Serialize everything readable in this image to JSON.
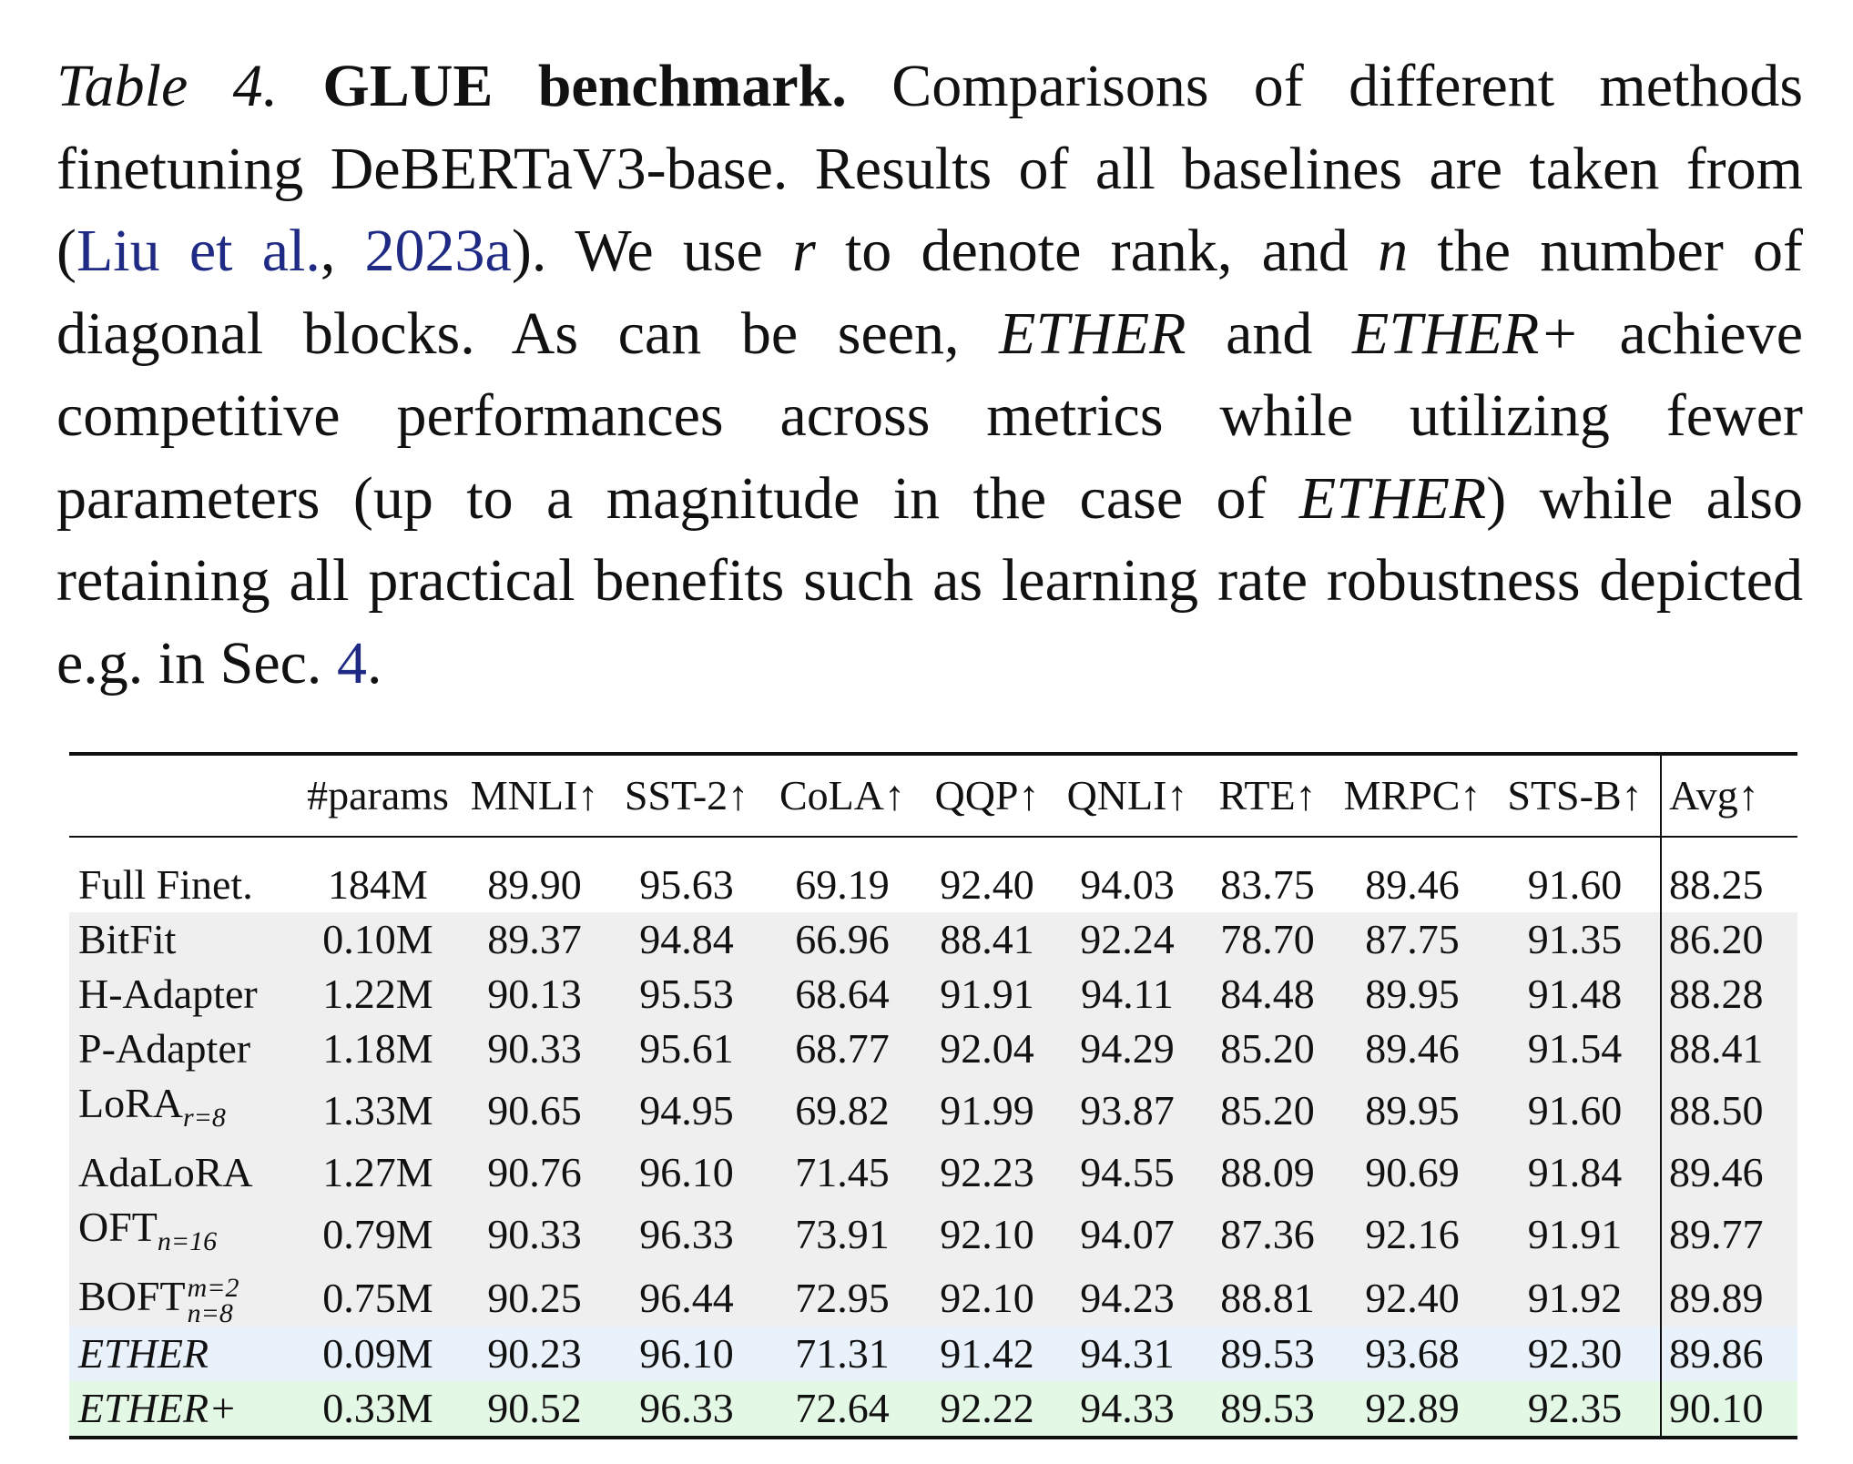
{
  "caption": {
    "table_label": "Table 4.",
    "title": "GLUE benchmark.",
    "text1": "Comparisons of different methods finetuning DeBERTaV3-base. Results of all baselines are taken from (",
    "cite_authors": "Liu et al.",
    "cite_sep": ", ",
    "cite_year": "2023a",
    "text2": "). We use ",
    "var_r": "r",
    "text3": " to denote rank, and ",
    "var_n": "n",
    "text4": " the number of diagonal blocks. As can be seen, ",
    "ether": "ETHER",
    "text5": " and ",
    "ether_plus": "ETHER+",
    "text6": " achieve competitive performances across metrics while utilizing fewer parameters (up to a magnitude in the case of ",
    "ether2": "ETHER",
    "text7": ") while also retaining all practical benefits such as learning rate robustness depicted e.g. in Sec. ",
    "sec_ref": "4",
    "text8": "."
  },
  "table": {
    "headers": {
      "method": "",
      "params": "#params",
      "mnli": "MNLI↑",
      "sst2": "SST-2↑",
      "cola": "CoLA↑",
      "qqp": "QQP↑",
      "qnli": "QNLI↑",
      "rte": "RTE↑",
      "mrpc": "MRPC↑",
      "stsb": "STS-B↑",
      "avg": "Avg↑"
    },
    "rows": [
      {
        "method": "Full Finet.",
        "params": "184M",
        "mnli": "89.90",
        "sst2": "95.63",
        "cola": "69.19",
        "qqp": "92.40",
        "qnli": "94.03",
        "rte": "83.75",
        "mrpc": "89.46",
        "stsb": "91.60",
        "avg": "88.25"
      },
      {
        "method": "BitFit",
        "params": "0.10M",
        "mnli": "89.37",
        "sst2": "94.84",
        "cola": "66.96",
        "qqp": "88.41",
        "qnli": "92.24",
        "rte": "78.70",
        "mrpc": "87.75",
        "stsb": "91.35",
        "avg": "86.20"
      },
      {
        "method": "H-Adapter",
        "params": "1.22M",
        "mnli": "90.13",
        "sst2": "95.53",
        "cola": "68.64",
        "qqp": "91.91",
        "qnli": "94.11",
        "rte": "84.48",
        "mrpc": "89.95",
        "stsb": "91.48",
        "avg": "88.28"
      },
      {
        "method": "P-Adapter",
        "params": "1.18M",
        "mnli": "90.33",
        "sst2": "95.61",
        "cola": "68.77",
        "qqp": "92.04",
        "qnli": "94.29",
        "rte": "85.20",
        "mrpc": "89.46",
        "stsb": "91.54",
        "avg": "88.41"
      },
      {
        "method": "LoRA",
        "method_sub": "r=8",
        "params": "1.33M",
        "mnli": "90.65",
        "sst2": "94.95",
        "cola": "69.82",
        "qqp": "91.99",
        "qnli": "93.87",
        "rte": "85.20",
        "mrpc": "89.95",
        "stsb": "91.60",
        "avg": "88.50"
      },
      {
        "method": "AdaLoRA",
        "params": "1.27M",
        "mnli": "90.76",
        "sst2": "96.10",
        "cola": "71.45",
        "qqp": "92.23",
        "qnli": "94.55",
        "rte": "88.09",
        "mrpc": "90.69",
        "stsb": "91.84",
        "avg": "89.46"
      },
      {
        "method": "OFT",
        "method_sub": "n=16",
        "params": "0.79M",
        "mnli": "90.33",
        "sst2": "96.33",
        "cola": "73.91",
        "qqp": "92.10",
        "qnli": "94.07",
        "rte": "87.36",
        "mrpc": "92.16",
        "stsb": "91.91",
        "avg": "89.77"
      },
      {
        "method": "BOFT",
        "method_sup": "m=2",
        "method_sub": "n=8",
        "params": "0.75M",
        "mnli": "90.25",
        "sst2": "96.44",
        "cola": "72.95",
        "qqp": "92.10",
        "qnli": "94.23",
        "rte": "88.81",
        "mrpc": "92.40",
        "stsb": "91.92",
        "avg": "89.89"
      },
      {
        "method": "ETHER",
        "params": "0.09M",
        "mnli": "90.23",
        "sst2": "96.10",
        "cola": "71.31",
        "qqp": "91.42",
        "qnli": "94.31",
        "rte": "89.53",
        "mrpc": "93.68",
        "stsb": "92.30",
        "avg": "89.86"
      },
      {
        "method": "ETHER+",
        "params": "0.33M",
        "mnli": "90.52",
        "sst2": "96.33",
        "cola": "72.64",
        "qqp": "92.22",
        "qnli": "94.33",
        "rte": "89.53",
        "mrpc": "92.89",
        "stsb": "92.35",
        "avg": "90.10"
      }
    ]
  },
  "colors": {
    "citation_link": "#1f2a85",
    "row_gray": "#efefef",
    "row_ether": "#e9f1fb",
    "row_ether_plus": "#e4f8e6"
  }
}
